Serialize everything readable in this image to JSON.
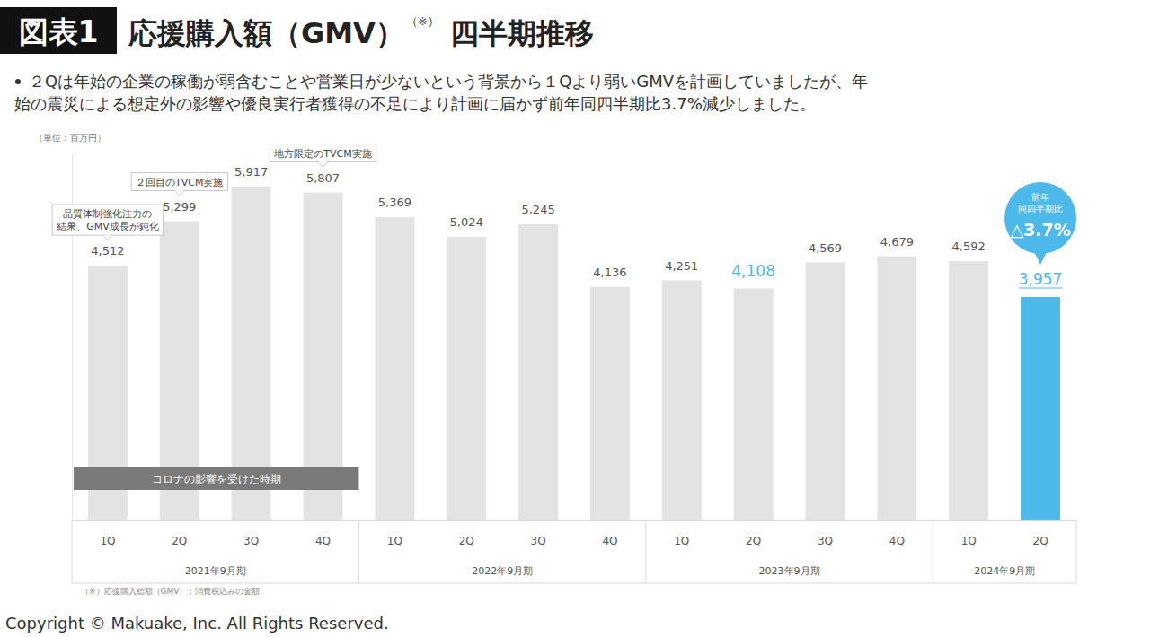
{
  "chart_data": {
    "type": "bar",
    "title_label": "図表1",
    "title": "応援購入額（GMV）",
    "title_note": "（※）",
    "title_suffix": "四半期推移",
    "subtitle": [
      "２Qは年始の企業の稼働が弱含むことや営業日が少ないという背景から１Qより弱いGMVを計画していましたが、年",
      "始の震災による想定外の影響や優良実行者獲得の不足により計画に届かず前年同四半期比3.7%減少しました。"
    ],
    "unit": "（単位：百万円）",
    "categories": [
      "1Q",
      "2Q",
      "3Q",
      "4Q",
      "1Q",
      "2Q",
      "3Q",
      "4Q",
      "1Q",
      "2Q",
      "3Q",
      "4Q",
      "1Q",
      "2Q"
    ],
    "groups": [
      {
        "label": "2021年9月期",
        "span": 4
      },
      {
        "label": "2022年9月期",
        "span": 4
      },
      {
        "label": "2023年9月期",
        "span": 4
      },
      {
        "label": "2024年9月期",
        "span": 2
      }
    ],
    "values": [
      4512,
      5299,
      5917,
      5807,
      5369,
      5024,
      5245,
      4136,
      4251,
      4108,
      4569,
      4679,
      4592,
      3957
    ],
    "value_labels": [
      "4,512",
      "5,299",
      "5,917",
      "5,807",
      "5,369",
      "5,024",
      "5,245",
      "4,136",
      "4,251",
      "4,108",
      "4,569",
      "4,679",
      "4,592",
      "3,957"
    ],
    "colors": [
      "#e3e3e3",
      "#e3e3e3",
      "#e3e3e3",
      "#e3e3e3",
      "#e3e3e3",
      "#e3e3e3",
      "#e3e3e3",
      "#e3e3e3",
      "#e3e3e3",
      "#e3e3e3",
      "#e3e3e3",
      "#e3e3e3",
      "#e3e3e3",
      "#4cb9ea"
    ],
    "data_labels": true,
    "ylim": [
      0,
      6500
    ],
    "yticks": [
      0
    ],
    "tick_labels": "x",
    "annotations": [
      {
        "lines": [
          "品質体制強化注力の",
          "結果、GMV成長が鈍化"
        ],
        "at": 0
      },
      {
        "lines": [
          "２回目のTVCM実施"
        ],
        "at": 1
      },
      {
        "lines": [
          "地方限定のTVCM実施"
        ],
        "at": 3
      }
    ],
    "period_band": {
      "text": "コロナの影響を受けた時期",
      "from": 0,
      "to": 3
    },
    "callout": {
      "lines": [
        "前年",
        "同四半期比"
      ],
      "text": "△3.7%",
      "at": 13
    },
    "footnote": "（※）応援購入総額（GMV）：消費税込みの金額",
    "copyright": "Copyright © Makuake, Inc. All Rights Reserved."
  }
}
